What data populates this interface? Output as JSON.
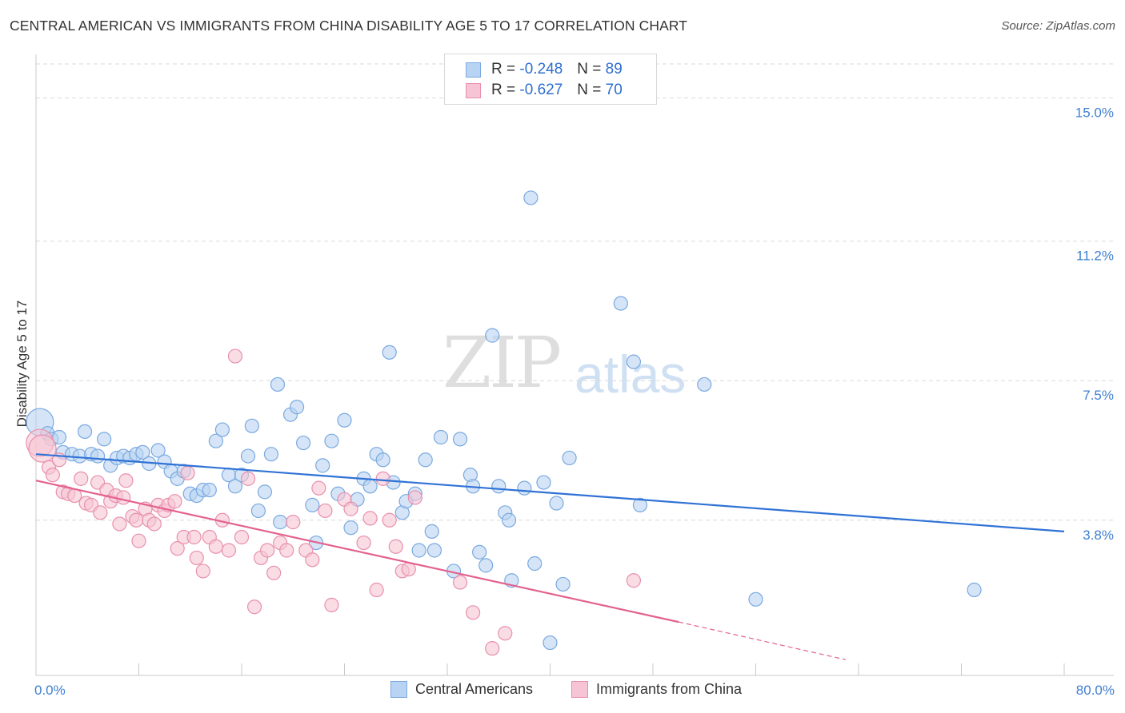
{
  "title": "CENTRAL AMERICAN VS IMMIGRANTS FROM CHINA DISABILITY AGE 5 TO 17 CORRELATION CHART",
  "source": "Source: ZipAtlas.com",
  "watermark": {
    "part1": "ZIP",
    "part2": "atlas"
  },
  "legend_top": {
    "rows": [
      {
        "r_label": "R =",
        "r_value": "-0.248",
        "n_label": "N =",
        "n_value": "89"
      },
      {
        "r_label": "R =",
        "r_value": "-0.627",
        "n_label": "N =",
        "n_value": "70"
      }
    ]
  },
  "colors": {
    "blue_fill": "#b9d3f2",
    "blue_stroke": "#7aa9e0",
    "blue_line": "#2f72d6",
    "pink_fill": "#f6c4d4",
    "pink_stroke": "#e890ad",
    "pink_line": "#e3628f",
    "grid": "#d9d9d9",
    "axis_text": "#3f7fd0"
  },
  "chart_data": {
    "type": "scatter",
    "title": "CENTRAL AMERICAN VS IMMIGRANTS FROM CHINA DISABILITY AGE 5 TO 17 CORRELATION CHART",
    "xlabel": "",
    "ylabel": "Disability Age 5 to 17",
    "xlim": [
      0,
      80
    ],
    "ylim": [
      0,
      15.9
    ],
    "x_tick_labels": [
      "0.0%",
      "80.0%"
    ],
    "y_ticks": [
      3.8,
      7.5,
      11.2,
      15.0
    ],
    "y_tick_labels": [
      "3.8%",
      "7.5%",
      "11.2%",
      "15.0%"
    ],
    "grid": "horizontal dashed",
    "legend_position": "top-center",
    "series": [
      {
        "name": "Central Americans",
        "color": "#b9d3f2",
        "trend": {
          "x0": 0,
          "y0": 5.55,
          "x1": 80,
          "y1": 3.5
        },
        "points": [
          [
            0.3,
            6.4
          ],
          [
            0.9,
            6.1
          ],
          [
            1.2,
            5.95
          ],
          [
            1.8,
            6.0
          ],
          [
            2.1,
            5.6
          ],
          [
            2.8,
            5.55
          ],
          [
            3.4,
            5.5
          ],
          [
            3.8,
            6.15
          ],
          [
            4.3,
            5.55
          ],
          [
            4.8,
            5.5
          ],
          [
            5.3,
            5.95
          ],
          [
            5.8,
            5.25
          ],
          [
            6.3,
            5.45
          ],
          [
            6.8,
            5.5
          ],
          [
            7.3,
            5.45
          ],
          [
            7.8,
            5.55
          ],
          [
            8.3,
            5.6
          ],
          [
            8.8,
            5.3
          ],
          [
            9.5,
            5.65
          ],
          [
            10.0,
            5.35
          ],
          [
            10.5,
            5.1
          ],
          [
            11.0,
            4.9
          ],
          [
            11.5,
            5.1
          ],
          [
            12.0,
            4.5
          ],
          [
            12.5,
            4.45
          ],
          [
            13.0,
            4.6
          ],
          [
            13.5,
            4.6
          ],
          [
            14.0,
            5.9
          ],
          [
            14.5,
            6.2
          ],
          [
            15.0,
            5.0
          ],
          [
            15.5,
            4.7
          ],
          [
            16.0,
            5.0
          ],
          [
            16.5,
            5.5
          ],
          [
            16.8,
            6.3
          ],
          [
            17.3,
            4.05
          ],
          [
            17.8,
            4.55
          ],
          [
            18.3,
            5.55
          ],
          [
            18.8,
            7.4
          ],
          [
            19.0,
            3.75
          ],
          [
            19.8,
            6.6
          ],
          [
            20.3,
            6.8
          ],
          [
            20.8,
            5.85
          ],
          [
            21.5,
            4.2
          ],
          [
            21.8,
            3.2
          ],
          [
            22.3,
            5.25
          ],
          [
            23.0,
            5.9
          ],
          [
            23.5,
            4.5
          ],
          [
            24.0,
            6.45
          ],
          [
            24.5,
            3.6
          ],
          [
            25.0,
            4.35
          ],
          [
            25.5,
            4.9
          ],
          [
            26.0,
            4.7
          ],
          [
            26.5,
            5.55
          ],
          [
            27.0,
            5.4
          ],
          [
            27.5,
            8.25
          ],
          [
            27.8,
            4.8
          ],
          [
            28.5,
            4.0
          ],
          [
            28.8,
            4.3
          ],
          [
            29.5,
            4.5
          ],
          [
            29.8,
            3.0
          ],
          [
            30.3,
            5.4
          ],
          [
            30.8,
            3.5
          ],
          [
            31.0,
            3.0
          ],
          [
            31.5,
            6.0
          ],
          [
            32.5,
            2.45
          ],
          [
            33.0,
            5.95
          ],
          [
            33.8,
            5.0
          ],
          [
            34.0,
            4.7
          ],
          [
            34.5,
            2.95
          ],
          [
            35.0,
            2.6
          ],
          [
            35.5,
            8.7
          ],
          [
            36.0,
            4.7
          ],
          [
            36.5,
            4.0
          ],
          [
            36.8,
            3.8
          ],
          [
            37.0,
            2.2
          ],
          [
            38.0,
            4.65
          ],
          [
            38.5,
            12.35
          ],
          [
            38.8,
            2.65
          ],
          [
            39.5,
            4.8
          ],
          [
            40.0,
            0.55
          ],
          [
            40.5,
            4.25
          ],
          [
            41.0,
            2.1
          ],
          [
            41.5,
            5.45
          ],
          [
            45.5,
            9.55
          ],
          [
            46.5,
            8.0
          ],
          [
            47.0,
            4.2
          ],
          [
            52.0,
            7.4
          ],
          [
            56.0,
            1.7
          ],
          [
            73.0,
            1.95
          ]
        ]
      },
      {
        "name": "Immigrants from China",
        "color": "#f6c4d4",
        "trend": {
          "x0": 0,
          "y0": 4.85,
          "x1": 50,
          "y1": 1.1,
          "dashed_to": {
            "x": 63,
            "y": 0.1
          }
        },
        "points": [
          [
            0.3,
            5.85
          ],
          [
            0.5,
            5.7
          ],
          [
            1.0,
            5.2
          ],
          [
            1.3,
            5.0
          ],
          [
            1.8,
            5.4
          ],
          [
            2.1,
            4.55
          ],
          [
            2.5,
            4.5
          ],
          [
            3.0,
            4.45
          ],
          [
            3.5,
            4.9
          ],
          [
            3.9,
            4.25
          ],
          [
            4.3,
            4.2
          ],
          [
            4.8,
            4.8
          ],
          [
            5.0,
            4.0
          ],
          [
            5.5,
            4.6
          ],
          [
            5.8,
            4.3
          ],
          [
            6.2,
            4.45
          ],
          [
            6.5,
            3.7
          ],
          [
            6.8,
            4.4
          ],
          [
            7.0,
            4.85
          ],
          [
            7.5,
            3.9
          ],
          [
            7.8,
            3.8
          ],
          [
            8.0,
            3.25
          ],
          [
            8.5,
            4.1
          ],
          [
            8.8,
            3.8
          ],
          [
            9.2,
            3.7
          ],
          [
            9.5,
            4.2
          ],
          [
            10.0,
            4.05
          ],
          [
            10.3,
            4.2
          ],
          [
            10.8,
            4.3
          ],
          [
            11.0,
            3.05
          ],
          [
            11.5,
            3.35
          ],
          [
            11.8,
            5.05
          ],
          [
            12.3,
            3.35
          ],
          [
            12.5,
            2.8
          ],
          [
            13.0,
            2.45
          ],
          [
            13.5,
            3.35
          ],
          [
            14.0,
            3.1
          ],
          [
            14.5,
            3.8
          ],
          [
            15.0,
            3.0
          ],
          [
            15.5,
            8.15
          ],
          [
            16.0,
            3.35
          ],
          [
            16.5,
            4.9
          ],
          [
            17.0,
            1.5
          ],
          [
            17.5,
            2.8
          ],
          [
            18.0,
            3.0
          ],
          [
            18.5,
            2.4
          ],
          [
            19.0,
            3.2
          ],
          [
            19.5,
            3.0
          ],
          [
            20.0,
            3.75
          ],
          [
            21.0,
            3.0
          ],
          [
            21.5,
            2.75
          ],
          [
            22.0,
            4.65
          ],
          [
            22.5,
            4.05
          ],
          [
            23.0,
            1.55
          ],
          [
            24.0,
            4.35
          ],
          [
            24.5,
            4.1
          ],
          [
            25.5,
            3.2
          ],
          [
            26.0,
            3.85
          ],
          [
            26.5,
            1.95
          ],
          [
            27.0,
            4.9
          ],
          [
            27.5,
            3.8
          ],
          [
            28.0,
            3.1
          ],
          [
            28.5,
            2.45
          ],
          [
            29.0,
            2.5
          ],
          [
            29.5,
            4.4
          ],
          [
            33.0,
            2.15
          ],
          [
            34.0,
            1.35
          ],
          [
            35.5,
            0.4
          ],
          [
            36.5,
            0.8
          ],
          [
            46.5,
            2.2
          ]
        ]
      }
    ]
  }
}
